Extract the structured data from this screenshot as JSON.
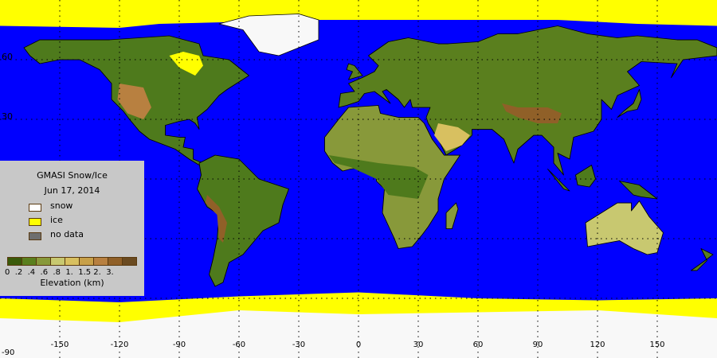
{
  "legend": {
    "title": "GMASI Snow/Ice",
    "date": "Jun 17, 2014",
    "items": [
      {
        "label": "snow",
        "color": "#ffffff"
      },
      {
        "label": "ice",
        "color": "#ffff00"
      },
      {
        "label": "no data",
        "color": "#6e6e6e"
      }
    ],
    "elevation_colors": [
      "#3a5a0a",
      "#5a7f1e",
      "#88993a",
      "#c8c870",
      "#d8c060",
      "#c8a048",
      "#b88040",
      "#906028",
      "#6a4a20"
    ],
    "elevation_ticks": "0  .2  .4  .6  .8  1.  1.5 2.  3.",
    "elevation_label": "Elevation (km)"
  },
  "axes": {
    "lon_ticks": [
      "-150",
      "-120",
      "-90",
      "-60",
      "-30",
      "0",
      "30",
      "60",
      "90",
      "120",
      "150"
    ],
    "lat_ticks": [
      "60",
      "30"
    ],
    "corner_label": "-90"
  },
  "colors": {
    "ocean": "#0000ff",
    "ice": "#ffff00",
    "snow": "#f8f8f8",
    "land": "#4e7a1c"
  }
}
